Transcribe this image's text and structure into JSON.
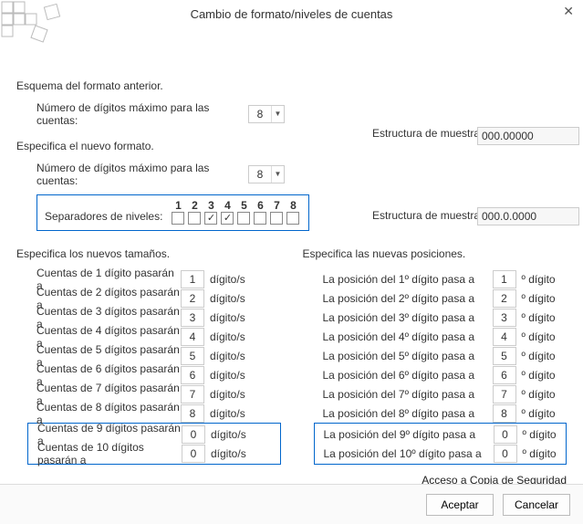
{
  "dialog": {
    "title": "Cambio de formato/niveles de cuentas",
    "close_glyph": "✕"
  },
  "prev": {
    "heading": "Esquema del formato anterior.",
    "max_digits_label": "Número de dígitos máximo para las cuentas:",
    "max_digits_value": "8",
    "sample_label": "Estructura de muestra:",
    "sample_value": "000.00000"
  },
  "new_format": {
    "heading": "Especifica el nuevo formato.",
    "max_digits_label": "Número de dígitos máximo para las cuentas:",
    "max_digits_value": "8",
    "sample_label": "Estructura de muestra:",
    "sample_value": "000.0.0000",
    "sep_label": "Separadores de niveles:",
    "sep_nums": [
      "1",
      "2",
      "3",
      "4",
      "5",
      "6",
      "7",
      "8"
    ],
    "sep_checked": [
      false,
      false,
      true,
      true,
      false,
      false,
      false,
      false
    ],
    "check_glyph": "✓"
  },
  "sizes": {
    "heading": "Especifica los nuevos tamaños.",
    "prefix": "Cuentas de ",
    "suffix": " pasarán a",
    "unit": "dígito/s",
    "rows": [
      {
        "n": "1 dígito",
        "v": "1"
      },
      {
        "n": "2 dígitos",
        "v": "2"
      },
      {
        "n": "3 dígitos",
        "v": "3"
      },
      {
        "n": "4 dígitos",
        "v": "4"
      },
      {
        "n": "5 dígitos",
        "v": "5"
      },
      {
        "n": "6 dígitos",
        "v": "6"
      },
      {
        "n": "7 dígitos",
        "v": "7"
      },
      {
        "n": "8 dígitos",
        "v": "8"
      }
    ],
    "extra_rows": [
      {
        "n": "9 dígitos",
        "v": "0"
      },
      {
        "n": "10 dígitos",
        "v": "0"
      }
    ]
  },
  "positions": {
    "heading": "Especifica las nuevas posiciones.",
    "prefix": "La posición del ",
    "suffix": " pasa a",
    "unit": "º dígito",
    "rows": [
      {
        "n": "1º dígito",
        "v": "1"
      },
      {
        "n": "2º dígito",
        "v": "2"
      },
      {
        "n": "3º dígito",
        "v": "3"
      },
      {
        "n": "4º dígito",
        "v": "4"
      },
      {
        "n": "5º dígito",
        "v": "5"
      },
      {
        "n": "6º dígito",
        "v": "6"
      },
      {
        "n": "7º dígito",
        "v": "7"
      },
      {
        "n": "8º dígito",
        "v": "8"
      }
    ],
    "extra_rows": [
      {
        "n": "9º dígito",
        "v": "0"
      },
      {
        "n": "10º dígito",
        "v": "0"
      }
    ]
  },
  "backup_link": "Acceso a Copia de Seguridad",
  "buttons": {
    "ok": "Aceptar",
    "cancel": "Cancelar"
  },
  "colors": {
    "accent": "#0066cc",
    "border": "#cccccc",
    "panel_bg": "#fafafa"
  }
}
